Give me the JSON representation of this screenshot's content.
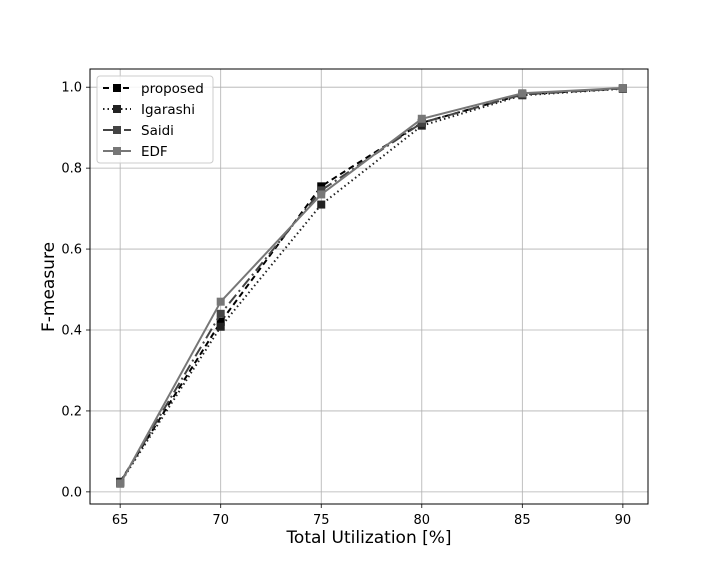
{
  "chart_data": {
    "type": "line",
    "title": "",
    "xlabel": "Total Utilization [%]",
    "ylabel": "F-measure",
    "x": [
      65,
      70,
      75,
      80,
      85,
      90
    ],
    "xlim": [
      63.5,
      91.25
    ],
    "ylim": [
      -0.03,
      1.045
    ],
    "xticks": [
      "65",
      "70",
      "75",
      "80",
      "85",
      "90"
    ],
    "yticks": [
      "0.0",
      "0.2",
      "0.4",
      "0.6",
      "0.8",
      "1.0"
    ],
    "grid": true,
    "legend_position": "top-left",
    "series": [
      {
        "name": "proposed",
        "values": [
          0.025,
          0.42,
          0.755,
          0.912,
          0.982,
          0.997
        ],
        "color": "#000000",
        "dash": "6,4",
        "marker": "square"
      },
      {
        "name": "Igarashi",
        "values": [
          0.022,
          0.408,
          0.71,
          0.905,
          0.98,
          0.996
        ],
        "color": "#222222",
        "dash": "1.5,3",
        "marker": "square"
      },
      {
        "name": "Saidi",
        "values": [
          0.023,
          0.44,
          0.745,
          0.912,
          0.982,
          0.997
        ],
        "color": "#444444",
        "dash": "11,4,2,4",
        "marker": "square"
      },
      {
        "name": "EDF",
        "values": [
          0.02,
          0.47,
          0.735,
          0.922,
          0.985,
          0.998
        ],
        "color": "#777777",
        "dash": "",
        "marker": "square"
      }
    ]
  }
}
